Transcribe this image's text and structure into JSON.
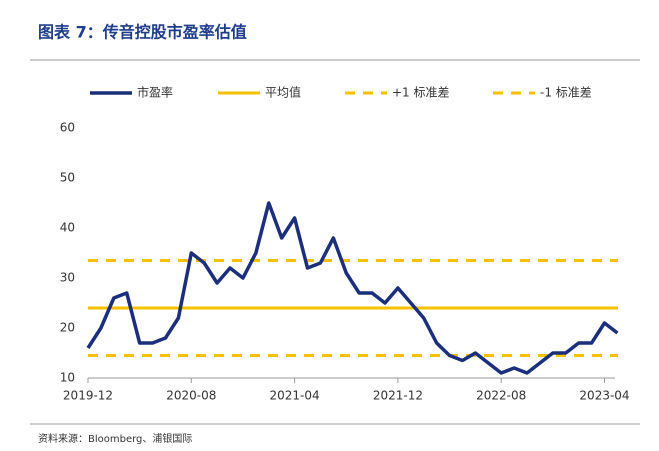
{
  "title": "图表 7：传音控股市盈率估值",
  "source": "资料来源：Bloomberg、浦银国际",
  "chart_data": {
    "type": "line",
    "categories": [
      "2019-12",
      null,
      null,
      null,
      null,
      null,
      null,
      null,
      "2020-08",
      null,
      null,
      null,
      null,
      null,
      null,
      null,
      "2021-04",
      null,
      null,
      null,
      null,
      null,
      null,
      null,
      "2021-12",
      null,
      null,
      null,
      null,
      null,
      null,
      null,
      "2022-08",
      null,
      null,
      null,
      null,
      null,
      null,
      null,
      "2023-04",
      null
    ],
    "series": [
      {
        "name": "市盈率",
        "color": "#1b2f7c",
        "values": [
          16,
          20,
          26,
          27,
          17,
          17,
          18,
          22,
          35,
          33,
          29,
          32,
          30,
          35,
          45,
          38,
          42,
          32,
          33,
          38,
          31,
          27,
          27,
          25,
          28,
          25,
          22,
          17,
          14.5,
          13.5,
          15,
          13,
          11,
          12,
          11,
          13,
          15,
          15,
          17,
          17,
          21,
          19
        ]
      }
    ],
    "hlines": [
      {
        "name": "平均值",
        "value": 24,
        "color": "#f5c000",
        "dashed": false
      },
      {
        "name": "+1 标准差",
        "value": 33.5,
        "color": "#f5c000",
        "dashed": true
      },
      {
        "name": "-1 标准差",
        "value": 14.5,
        "color": "#f5c000",
        "dashed": true
      }
    ],
    "ylim": [
      10,
      60
    ],
    "yticks": [
      10,
      20,
      30,
      40,
      50,
      60
    ],
    "grid": false
  }
}
